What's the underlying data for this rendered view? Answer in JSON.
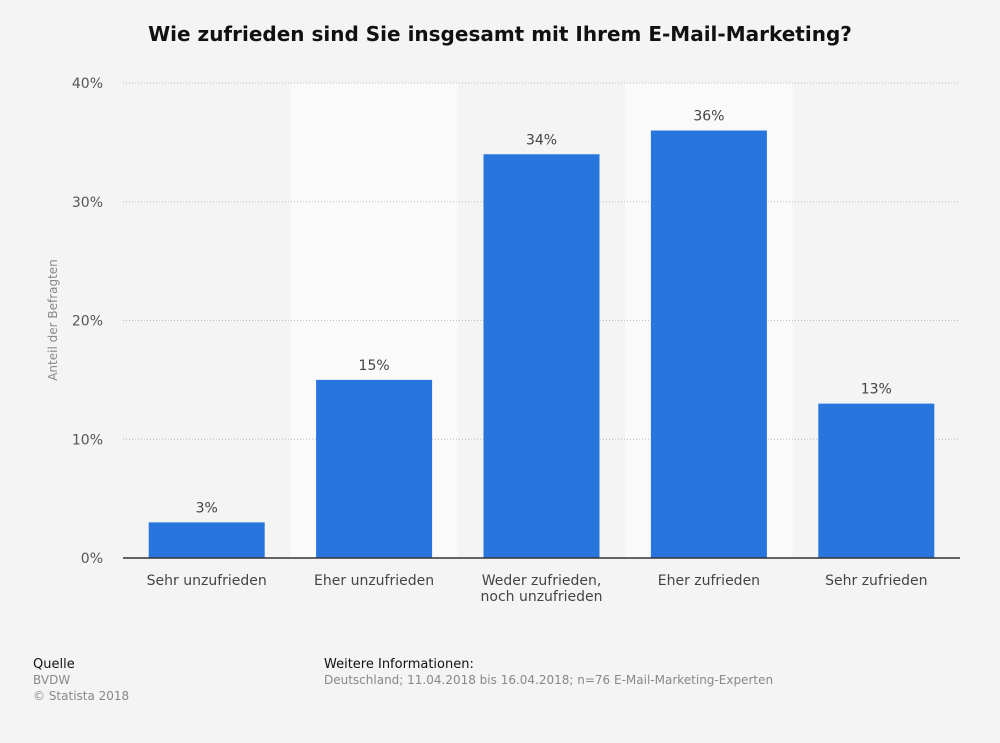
{
  "chart_data": {
    "type": "bar",
    "title": "Wie zufrieden sind Sie insgesamt mit Ihrem E-Mail-Marketing?",
    "ylabel": "Anteil der Befragten",
    "xlabel": "",
    "categories": [
      [
        "Sehr unzufrieden"
      ],
      [
        "Eher unzufrieden"
      ],
      [
        "Weder zufrieden,",
        "noch unzufrieden"
      ],
      [
        "Eher zufrieden"
      ],
      [
        "Sehr zufrieden"
      ]
    ],
    "values": [
      3,
      15,
      34,
      36,
      13
    ],
    "value_labels": [
      "3%",
      "15%",
      "34%",
      "36%",
      "13%"
    ],
    "ylim": [
      0,
      40
    ],
    "yticks": [
      0,
      10,
      20,
      30,
      40
    ],
    "ytick_labels": [
      "0%",
      "10%",
      "20%",
      "30%",
      "40%"
    ],
    "grid": true,
    "bar_color": "#2876dd"
  },
  "footer": {
    "source_heading": "Quelle",
    "source": "BVDW",
    "copyright": "© Statista 2018",
    "info_heading": "Weitere Informationen:",
    "info": "Deutschland; 11.04.2018 bis 16.04.2018; n=76 E-Mail-Marketing-Experten"
  }
}
